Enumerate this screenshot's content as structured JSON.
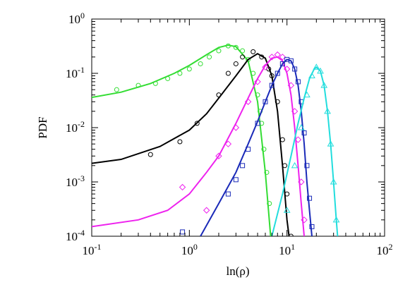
{
  "chart_data": {
    "type": "line",
    "xlabel": "ln(ρ)",
    "ylabel": "PDF",
    "xscale": "log",
    "yscale": "log",
    "xlim": [
      0.1,
      100
    ],
    "ylim": [
      0.0001,
      1
    ],
    "xticks": [
      {
        "value": 0.1,
        "label": "10^-1"
      },
      {
        "value": 1,
        "label": "10^0"
      },
      {
        "value": 10,
        "label": "10^1"
      },
      {
        "value": 100,
        "label": "10^2"
      }
    ],
    "yticks": [
      {
        "value": 0.0001,
        "label": "10^-4"
      },
      {
        "value": 0.001,
        "label": "10^-3"
      },
      {
        "value": 0.01,
        "label": "10^-2"
      },
      {
        "value": 0.1,
        "label": "10^-1"
      },
      {
        "value": 1,
        "label": "10^0"
      }
    ],
    "series": [
      {
        "color": "#33dd33",
        "x": [
          0.1,
          0.2,
          0.4,
          0.7,
          1,
          1.5,
          2,
          2.5,
          3,
          4,
          5,
          6,
          6.8
        ],
        "values": [
          0.036,
          0.045,
          0.065,
          0.1,
          0.14,
          0.22,
          0.3,
          0.33,
          0.31,
          0.17,
          0.03,
          0.0015,
          0.0001
        ]
      },
      {
        "color": "#33dd33",
        "marker": "circle",
        "x": [
          0.18,
          0.3,
          0.45,
          0.6,
          0.8,
          1,
          1.3,
          1.6,
          2,
          2.5,
          3,
          3.5,
          4,
          4.5,
          5,
          5.3,
          5.5,
          5.8,
          6.2,
          6.6
        ],
        "values": [
          0.05,
          0.06,
          0.065,
          0.08,
          0.1,
          0.12,
          0.15,
          0.2,
          0.26,
          0.32,
          0.3,
          0.26,
          0.18,
          0.1,
          0.04,
          0.02,
          0.012,
          0.004,
          0.0015,
          0.0004
        ]
      },
      {
        "color": "#000000",
        "x": [
          0.1,
          0.2,
          0.5,
          1,
          1.5,
          2,
          3,
          4,
          5,
          6,
          7,
          8,
          9,
          10,
          10.5
        ],
        "values": [
          0.0022,
          0.0026,
          0.0045,
          0.009,
          0.018,
          0.035,
          0.09,
          0.18,
          0.23,
          0.19,
          0.09,
          0.02,
          0.002,
          0.0002,
          0.0001
        ]
      },
      {
        "color": "#000000",
        "marker": "circle",
        "x": [
          0.4,
          0.8,
          1.2,
          2,
          2.5,
          3,
          3.5,
          4.5,
          5.5,
          6.5,
          7,
          8,
          9,
          9.5,
          10,
          11
        ],
        "values": [
          0.0032,
          0.0055,
          0.012,
          0.04,
          0.1,
          0.15,
          0.2,
          0.25,
          0.2,
          0.12,
          0.09,
          0.03,
          0.006,
          0.002,
          0.0006,
          0.0001
        ]
      },
      {
        "color": "#ee22ee",
        "x": [
          0.1,
          0.3,
          0.6,
          1,
          1.5,
          2,
          3,
          4,
          5,
          6,
          7,
          8,
          9,
          10,
          11,
          12,
          13,
          14,
          15
        ],
        "values": [
          0.00015,
          0.0002,
          0.0003,
          0.0006,
          0.0015,
          0.003,
          0.012,
          0.035,
          0.08,
          0.14,
          0.19,
          0.2,
          0.17,
          0.1,
          0.04,
          0.01,
          0.002,
          0.0004,
          0.0001
        ]
      },
      {
        "color": "#ee22ee",
        "marker": "diamond",
        "x": [
          0.85,
          1.5,
          2,
          2.5,
          3,
          4,
          5,
          6,
          7,
          8,
          9,
          10,
          11,
          12,
          13,
          14,
          15
        ],
        "values": [
          0.0008,
          0.0003,
          0.003,
          0.005,
          0.01,
          0.03,
          0.07,
          0.13,
          0.2,
          0.22,
          0.2,
          0.12,
          0.06,
          0.02,
          0.006,
          0.001,
          0.0002
        ]
      },
      {
        "color": "#1a2ab8",
        "x": [
          1.3,
          2,
          3,
          4,
          5,
          6,
          7,
          8,
          9,
          10,
          11,
          12,
          13,
          14,
          15,
          16,
          17,
          18
        ],
        "values": [
          0.0001,
          0.0004,
          0.0015,
          0.005,
          0.013,
          0.03,
          0.06,
          0.1,
          0.15,
          0.18,
          0.17,
          0.12,
          0.06,
          0.02,
          0.005,
          0.001,
          0.0003,
          0.0001
        ]
      },
      {
        "color": "#1a2ab8",
        "marker": "square",
        "x": [
          0.85,
          2.5,
          3,
          3.5,
          4,
          5,
          6,
          7,
          8,
          9,
          10,
          11,
          12,
          13,
          14,
          15,
          16,
          17,
          18
        ],
        "values": [
          0.00012,
          0.0006,
          0.0011,
          0.002,
          0.004,
          0.012,
          0.03,
          0.06,
          0.1,
          0.15,
          0.18,
          0.17,
          0.12,
          0.07,
          0.03,
          0.008,
          0.002,
          0.0005,
          0.00015
        ]
      },
      {
        "color": "#22dddd",
        "x": [
          7,
          9,
          11,
          13,
          15,
          17,
          19,
          20,
          22,
          24,
          26,
          28,
          30,
          32,
          33
        ],
        "values": [
          0.0001,
          0.0006,
          0.003,
          0.012,
          0.035,
          0.08,
          0.12,
          0.13,
          0.11,
          0.06,
          0.02,
          0.005,
          0.001,
          0.0002,
          0.0001
        ]
      },
      {
        "color": "#22dddd",
        "marker": "triangle",
        "x": [
          10,
          12,
          14,
          16,
          18,
          20,
          22,
          24,
          26,
          28,
          30,
          32
        ],
        "values": [
          0.0003,
          0.002,
          0.01,
          0.04,
          0.09,
          0.13,
          0.11,
          0.06,
          0.02,
          0.005,
          0.001,
          0.0002
        ]
      }
    ]
  }
}
